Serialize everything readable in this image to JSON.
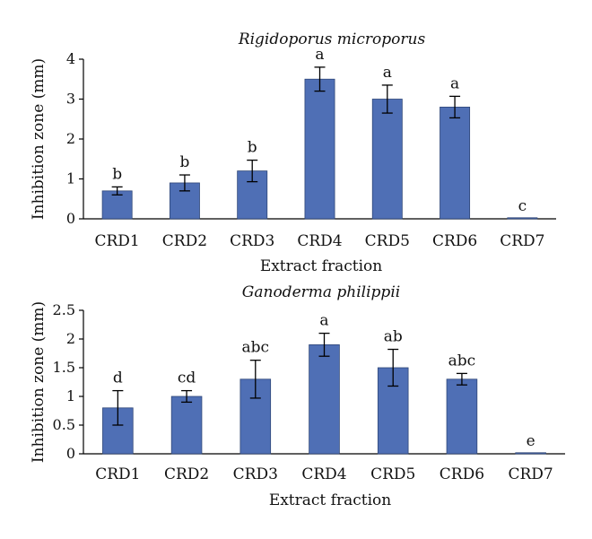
{
  "chart_data": [
    {
      "type": "bar",
      "title": "Rigidoporus microporus",
      "xlabel": "Extract fraction",
      "ylabel": "Inhibition zone (mm)",
      "ylim": [
        0,
        4
      ],
      "yticks": [
        "0",
        "1",
        "2",
        "3",
        "4"
      ],
      "yticks_values": [
        0,
        1,
        2,
        3,
        4
      ],
      "categories": [
        "CRD1",
        "CRD2",
        "CRD3",
        "CRD4",
        "CRD5",
        "CRD6",
        "CRD7"
      ],
      "values": [
        0.7,
        0.9,
        1.2,
        3.5,
        3.0,
        2.8,
        0.0
      ],
      "errors": [
        0.1,
        0.2,
        0.27,
        0.3,
        0.35,
        0.27,
        0.0
      ],
      "significance": [
        "b",
        "b",
        "b",
        "a",
        "a",
        "a",
        "c"
      ],
      "bar_color": "#4f6fb5",
      "grid": false
    },
    {
      "type": "bar",
      "title": "Ganoderma philippii",
      "xlabel": "Extract fraction",
      "ylabel": "Inhibition zone (mm)",
      "ylim": [
        0,
        2.5
      ],
      "yticks": [
        "0",
        "0.5",
        "1",
        "1.5",
        "2",
        "2.5"
      ],
      "yticks_values": [
        0,
        0.5,
        1,
        1.5,
        2,
        2.5
      ],
      "categories": [
        "CRD1",
        "CRD2",
        "CRD3",
        "CRD4",
        "CRD5",
        "CRD6",
        "CRD7"
      ],
      "values": [
        0.8,
        1.0,
        1.3,
        1.9,
        1.5,
        1.3,
        0.0
      ],
      "errors": [
        0.3,
        0.1,
        0.33,
        0.2,
        0.32,
        0.1,
        0.0
      ],
      "significance": [
        "d",
        "cd",
        "abc",
        "a",
        "ab",
        "abc",
        "e"
      ],
      "bar_color": "#4f6fb5",
      "grid": false
    }
  ]
}
